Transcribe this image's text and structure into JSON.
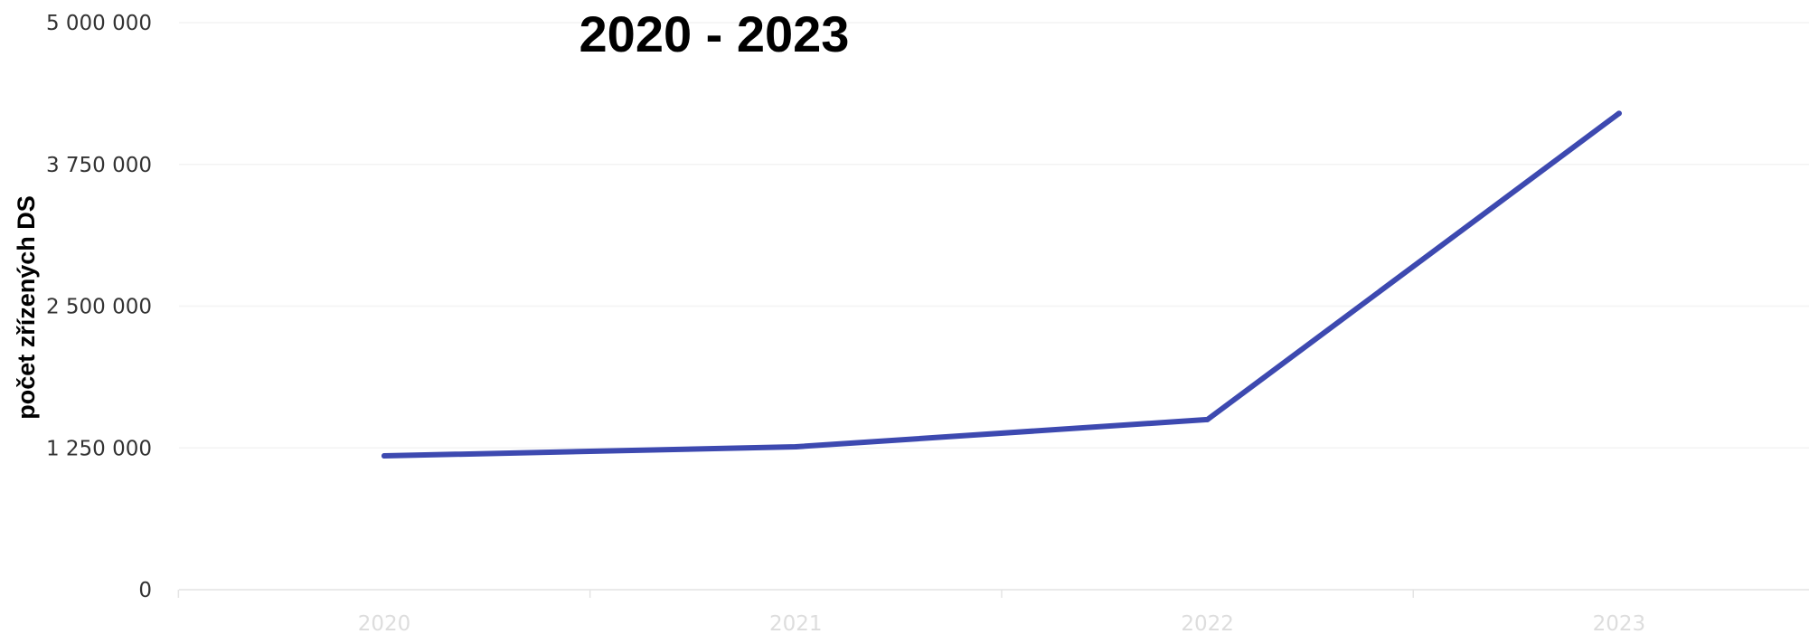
{
  "chart_data": {
    "type": "line",
    "title": "2020 - 2023",
    "xlabel": "",
    "ylabel": "počet zřízených DS",
    "categories": [
      "2020",
      "2021",
      "2022",
      "2023"
    ],
    "series": [
      {
        "values": [
          1180000,
          1260000,
          1500000,
          4200000
        ],
        "color": "#3d49b0"
      }
    ],
    "ylim": [
      0,
      5000000
    ],
    "yticks": [
      0,
      1250000,
      2500000,
      3750000,
      5000000
    ],
    "ytick_labels": [
      "0",
      "1 250 000",
      "2 500 000",
      "3 750 000",
      "5 000 000"
    ],
    "grid": true,
    "legend": "none"
  }
}
